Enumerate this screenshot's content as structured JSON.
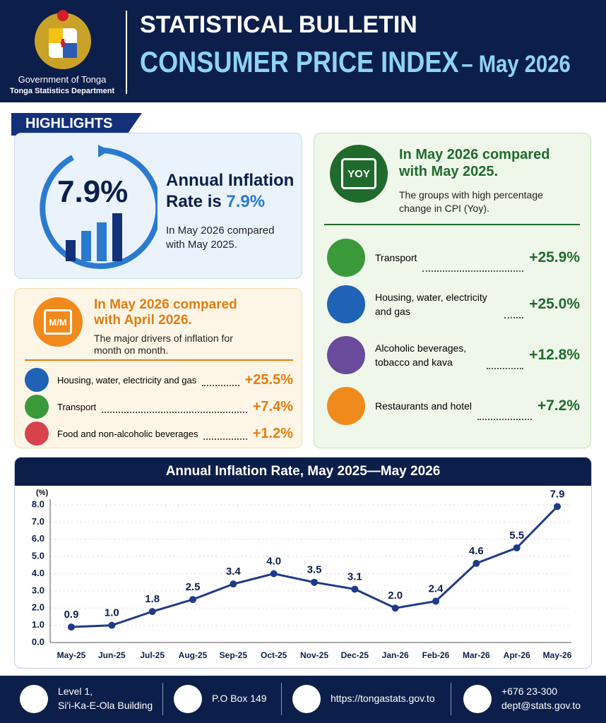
{
  "header": {
    "org": "Government of Tonga",
    "dept": "Tonga Statistics Department",
    "title": "STATISTICAL BULLETIN",
    "subtitle": "CONSUMER PRICE INDEX",
    "period": "– May 2026"
  },
  "highlights": {
    "label": "HIGHLIGHTS",
    "annual": {
      "rate": "7.9%",
      "heading": "Annual Inflation Rate is",
      "heading_rate": "7.9%",
      "note": "In May 2026 compared with May 2025."
    },
    "monthly": {
      "icon": "M/M",
      "heading": "In May 2026 compared with April 2026.",
      "text": "The major drivers of inflation for month on month.",
      "items": [
        {
          "label": "Housing, water, electricity and gas",
          "value": "+25.5%"
        },
        {
          "label": "Transport",
          "value": "+7.4%"
        },
        {
          "label": "Food and non-alcoholic beverages",
          "value": "+1.2%"
        }
      ]
    },
    "yearly": {
      "icon": "YOY",
      "heading": "In May 2026 compared with May 2025.",
      "text": "The groups with high percentage change in CPI (Yoy).",
      "items": [
        {
          "label": "Transport",
          "value": "+25.9%"
        },
        {
          "label": "Housing, water, electricity and gas",
          "value": "+25.0%"
        },
        {
          "label": "Alcoholic beverages, tobacco and kava",
          "value": "+12.8%"
        },
        {
          "label": "Restaurants and hotel",
          "value": "+7.2%"
        }
      ]
    }
  },
  "chart_data": {
    "type": "line",
    "title": "Annual Inflation Rate, May 2025—May 2026",
    "y_label": "(%)",
    "categories": [
      "May-25",
      "Jun-25",
      "Jul-25",
      "Aug-25",
      "Sep-25",
      "Oct-25",
      "Nov-25",
      "Dec-25",
      "Jan-26",
      "Feb-26",
      "Mar-26",
      "Apr-26",
      "May-26"
    ],
    "values": [
      0.9,
      1.0,
      1.8,
      2.5,
      3.4,
      4.0,
      3.5,
      3.1,
      2.0,
      2.4,
      4.6,
      5.5,
      7.9
    ],
    "value_labels": [
      "0.9",
      "1.0",
      "1.8",
      "2.5",
      "3.4",
      "4.0",
      "3.5",
      "3.1",
      "2.0",
      "2.4",
      "4.6",
      "5.5",
      "7.9"
    ],
    "color": "#1f3a8a",
    "ylim": [
      0,
      8
    ],
    "yticks": [
      {
        "value": 0,
        "label": "0.0"
      },
      {
        "value": 1,
        "label": "1.0"
      },
      {
        "value": 2,
        "label": "2.0"
      },
      {
        "value": 3,
        "label": "3.0"
      },
      {
        "value": 4,
        "label": "4.0"
      },
      {
        "value": 5,
        "label": "5.0"
      },
      {
        "value": 6,
        "label": "6.0"
      },
      {
        "value": 7,
        "label": "7.0"
      },
      {
        "value": 8,
        "label": "8.0"
      }
    ],
    "grid": true
  },
  "footer": {
    "address": [
      "Level 1,",
      "Si'i-Ka-E-Ola Building"
    ],
    "pobox": "P.O Box 149",
    "web": "https://tongastats.gov.to",
    "phone": "+676 23-300",
    "email": "dept@stats.gov.to"
  }
}
